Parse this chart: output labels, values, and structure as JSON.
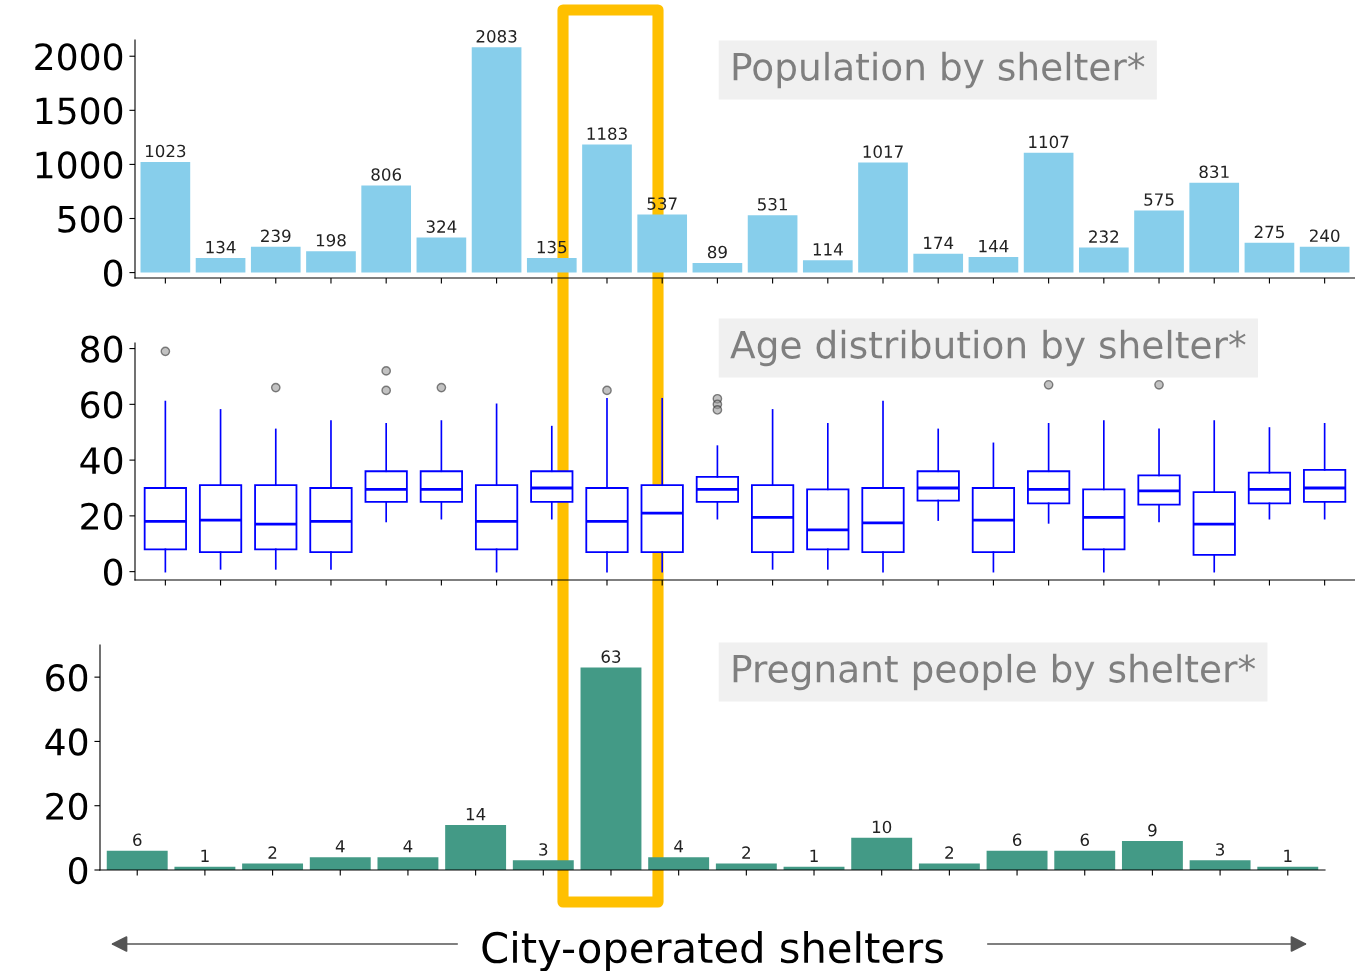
{
  "chart_data": [
    {
      "type": "bar",
      "title": "Population by shelter*",
      "categories": [
        null,
        null,
        null,
        null,
        null,
        null,
        null,
        null,
        null,
        null,
        null,
        null,
        null,
        null,
        null,
        null,
        null,
        null,
        null,
        null,
        null,
        null
      ],
      "series": [
        {
          "color": "#87ceeb",
          "values": [
            1023,
            134,
            239,
            198,
            806,
            324,
            2083,
            135,
            1183,
            537,
            89,
            531,
            114,
            1017,
            174,
            144,
            1107,
            232,
            575,
            831,
            275,
            240
          ]
        }
      ],
      "data_labels": true,
      "ylim": [
        -50,
        2150
      ],
      "yticks": [
        0,
        500,
        1000,
        1500,
        2000
      ],
      "tick_labels": "y",
      "grid": false,
      "legend": false
    },
    {
      "type": "box",
      "title": "Age distribution by shelter*",
      "categories": [
        null,
        null,
        null,
        null,
        null,
        null,
        null,
        null,
        null,
        null,
        null,
        null,
        null,
        null,
        null,
        null,
        null,
        null,
        null,
        null,
        null,
        null
      ],
      "series": [
        {
          "color": "#0000ff",
          "boxes": [
            {
              "low": 0,
              "q1": 8,
              "median": 18,
              "q3": 30,
              "high": 61,
              "outliers": [
                79
              ]
            },
            {
              "low": 1,
              "q1": 7,
              "median": 18.5,
              "q3": 31,
              "high": 58
            },
            {
              "low": 1,
              "q1": 8,
              "median": 17,
              "q3": 31,
              "high": 51,
              "outliers": [
                66
              ]
            },
            {
              "low": 1,
              "q1": 7,
              "median": 18,
              "q3": 30,
              "high": 54
            },
            {
              "low": 18,
              "q1": 25,
              "median": 29.5,
              "q3": 36,
              "high": 53,
              "outliers": [
                72,
                65
              ]
            },
            {
              "low": 19,
              "q1": 25,
              "median": 29.5,
              "q3": 36,
              "high": 54,
              "outliers": [
                66
              ]
            },
            {
              "low": 0,
              "q1": 8,
              "median": 18,
              "q3": 31,
              "high": 60
            },
            {
              "low": 19,
              "q1": 25,
              "median": 30,
              "q3": 36,
              "high": 52
            },
            {
              "low": 0,
              "q1": 7,
              "median": 18,
              "q3": 30,
              "high": 62,
              "outliers": [
                65
              ]
            },
            {
              "low": 0,
              "q1": 7,
              "median": 21,
              "q3": 31,
              "high": 62
            },
            {
              "low": 19,
              "q1": 25,
              "median": 29.5,
              "q3": 34,
              "high": 45,
              "outliers": [
                62,
                60,
                58
              ]
            },
            {
              "low": 1,
              "q1": 7,
              "median": 19.5,
              "q3": 31,
              "high": 58
            },
            {
              "low": 1,
              "q1": 8,
              "median": 15,
              "q3": 29.5,
              "high": 53
            },
            {
              "low": 0,
              "q1": 7,
              "median": 17.5,
              "q3": 30,
              "high": 61
            },
            {
              "low": 18.5,
              "q1": 25.5,
              "median": 30,
              "q3": 36,
              "high": 51
            },
            {
              "low": 0,
              "q1": 7,
              "median": 18.5,
              "q3": 30,
              "high": 46
            },
            {
              "low": 17.5,
              "q1": 24.5,
              "median": 29.5,
              "q3": 36,
              "high": 53,
              "outliers": [
                67
              ]
            },
            {
              "low": 0,
              "q1": 8,
              "median": 19.5,
              "q3": 29.5,
              "high": 54
            },
            {
              "low": 18,
              "q1": 24,
              "median": 29,
              "q3": 34.5,
              "high": 51,
              "outliers": [
                67
              ]
            },
            {
              "low": 0,
              "q1": 6,
              "median": 17,
              "q3": 28.5,
              "high": 54
            },
            {
              "low": 19,
              "q1": 24.5,
              "median": 29.5,
              "q3": 35.5,
              "high": 51.5
            },
            {
              "low": 19,
              "q1": 25,
              "median": 30,
              "q3": 36.5,
              "high": 53
            }
          ]
        }
      ],
      "ylim": [
        -3,
        82
      ],
      "yticks": [
        0,
        20,
        40,
        60,
        80
      ],
      "tick_labels": "y",
      "grid": false,
      "legend": false
    },
    {
      "type": "bar",
      "title": "Pregnant people by shelter*",
      "xlabel": "City-operated shelters",
      "categories": [
        null,
        null,
        null,
        null,
        null,
        null,
        null,
        null,
        null,
        null,
        null,
        null,
        null,
        null,
        null,
        null,
        null,
        null
      ],
      "series": [
        {
          "color": "#439a86",
          "values": [
            6,
            1,
            2,
            4,
            4,
            14,
            3,
            63,
            4,
            2,
            1,
            10,
            2,
            6,
            6,
            9,
            3,
            1
          ]
        }
      ],
      "data_labels": true,
      "ylim": [
        0,
        70
      ],
      "yticks": [
        0,
        20,
        40,
        60
      ],
      "tick_labels": "y",
      "grid": false,
      "legend": false
    }
  ]
}
